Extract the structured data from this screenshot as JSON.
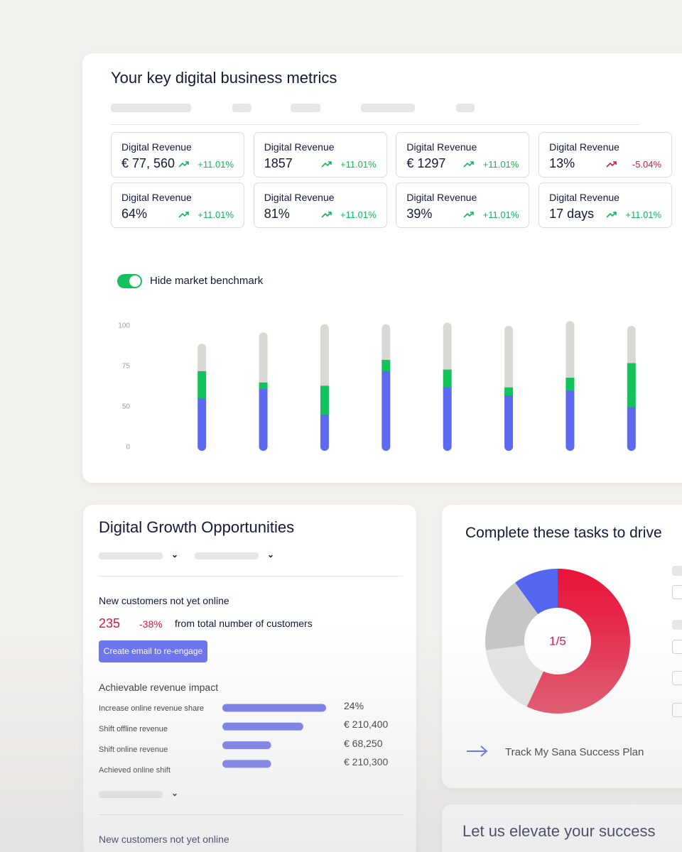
{
  "metrics_panel": {
    "title": "Your key digital business metrics",
    "metrics": [
      {
        "label": "Digital Revenue",
        "value": "€ 77, 560",
        "change": "+11.01%"
      },
      {
        "label": "Digital Revenue",
        "value": "1857",
        "change": "+11.01%"
      },
      {
        "label": "Digital Revenue",
        "value": "€ 1297",
        "change": "+11.01%"
      },
      {
        "label": "Digital Revenue",
        "value": "13%",
        "change": "-5.04%"
      },
      {
        "label": "Digital Revenue",
        "value": "64%",
        "change": "+11.01%"
      },
      {
        "label": "Digital Revenue",
        "value": "81%",
        "change": "+11.01%"
      },
      {
        "label": "Digital Revenue",
        "value": "39%",
        "change": "+11.01%"
      },
      {
        "label": "Digital Revenue",
        "value": "17 days",
        "change": "+11.01%"
      }
    ],
    "toggle_label": "Hide market benchmark"
  },
  "chart_data": [
    {
      "type": "stacked_bar",
      "ylim": [
        0,
        104
      ],
      "yticks": [
        0,
        50,
        75,
        100
      ],
      "series": [
        {
          "color": "#5b6af0",
          "values": [
            55,
            61,
            40,
            72,
            62,
            57,
            60,
            50
          ]
        },
        {
          "color": "#12c25a",
          "values": [
            17,
            4,
            23,
            7,
            11,
            5,
            8,
            27
          ]
        },
        {
          "color": "#d9d8d5",
          "values": [
            17,
            31,
            38,
            22,
            29,
            38,
            35,
            23
          ]
        }
      ]
    },
    {
      "type": "donut",
      "center_label": "1/5",
      "values": [
        57,
        16,
        17,
        10
      ],
      "colors": [
        "#e8133a",
        "#e4e4e4",
        "#c6c6c6",
        "#5566f0"
      ]
    },
    {
      "type": "hbar",
      "categories": [
        "Increase online revenue share",
        "Shift offline revenue",
        "Shift online revenue",
        "Achieved online shift"
      ],
      "values": [
        100,
        78,
        47,
        47
      ],
      "xlim": [
        0,
        100
      ],
      "color": "#7378e8"
    }
  ],
  "growth_panel": {
    "title": "Digital Growth Opportunities",
    "subtitle": "New customers not yet online",
    "count": 235,
    "change": "-38%",
    "note": "from total number of customers",
    "button": "Create email to re-engage",
    "impact_title": "Achievable revenue impact",
    "impact_amounts": [
      "24%",
      "€ 210,400",
      "€ 68,250",
      "€ 210,300"
    ],
    "footer_title": "New customers not yet online"
  },
  "tasks_panel": {
    "title": "Complete these tasks to drive",
    "link": "Track My Sana Success Plan"
  },
  "elevate_panel": {
    "title": "Let us elevate your success"
  }
}
